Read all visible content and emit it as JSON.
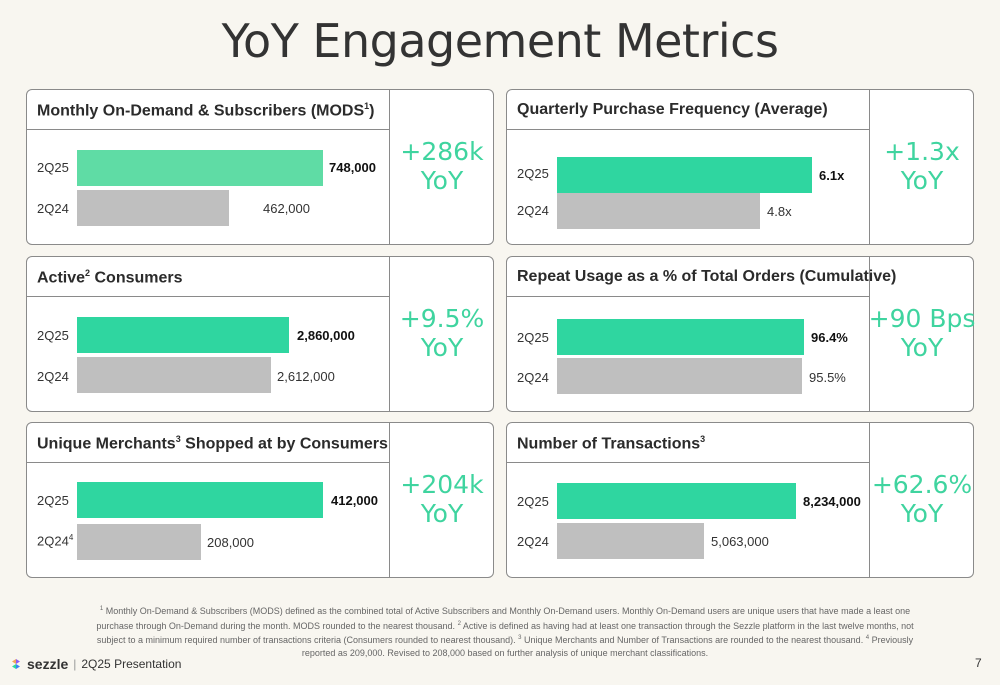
{
  "title": "YoY Engagement Metrics",
  "colors": {
    "current_bar": "#2fd6a0",
    "prior_bar": "#bfbfbf",
    "yoy_text": "#3fd49f"
  },
  "cards": {
    "mods": {
      "title": "Monthly On-Demand & Subscribers (MODS",
      "title_sup": "1",
      "title_tail": ")",
      "cur_label": "2Q25",
      "cur_value": "748,000",
      "cur_num": 748000,
      "prev_label": "2Q24",
      "prev_value": "462,000",
      "prev_num": 462000,
      "yoy_line1": "+286k",
      "yoy_line2": "YoY"
    },
    "freq": {
      "title": "Quarterly Purchase Frequency (Average)",
      "cur_label": "2Q25",
      "cur_value": "6.1x",
      "cur_num": 6.1,
      "prev_label": "2Q24",
      "prev_value": "4.8x",
      "prev_num": 4.8,
      "yoy_line1": "+1.3x",
      "yoy_line2": "YoY"
    },
    "active": {
      "title_pre": "Active",
      "title_sup": "2",
      "title_post": " Consumers",
      "cur_label": "2Q25",
      "cur_value": "2,860,000",
      "cur_num": 2860000,
      "prev_label": "2Q24",
      "prev_value": "2,612,000",
      "prev_num": 2612000,
      "yoy_line1": "+9.5%",
      "yoy_line2": "YoY"
    },
    "repeat": {
      "title": "Repeat Usage as a % of Total Orders (Cumulative)",
      "cur_label": "2Q25",
      "cur_value": "96.4%",
      "cur_num": 96.4,
      "prev_label": "2Q24",
      "prev_value": "95.5%",
      "prev_num": 95.5,
      "yoy_line1": "+90 Bps",
      "yoy_line2": "YoY"
    },
    "merchants": {
      "title_pre": "Unique Merchants",
      "title_sup": "3",
      "title_post": " Shopped at by Consumers",
      "cur_label": "2Q25",
      "cur_value": "412,000",
      "cur_num": 412000,
      "prev_label": "2Q24",
      "prev_label_sup": "4",
      "prev_value": "208,000",
      "prev_num": 208000,
      "yoy_line1": "+204k",
      "yoy_line2": "YoY"
    },
    "transactions": {
      "title_pre": "Number of Transactions",
      "title_sup": "3",
      "cur_label": "2Q25",
      "cur_value": "8,234,000",
      "cur_num": 8234000,
      "prev_label": "2Q24",
      "prev_value": "5,063,000",
      "prev_num": 5063000,
      "yoy_line1": "+62.6%",
      "yoy_line2": "YoY"
    }
  },
  "footnote": {
    "s1": "1",
    "t1": " Monthly On-Demand & Subscribers (MODS) defined as the combined total of Active Subscribers and Monthly On-Demand users. Monthly On-Demand users are unique users that have made a least one purchase through On-Demand during the month. MODS rounded to the nearest thousand.",
    "s2": "2",
    "t2": " Active is defined as having had at least one transaction through the Sezzle platform in the last twelve months, not subject to a minimum required number of transactions criteria (Consumers rounded to nearest thousand).",
    "s3": "3",
    "t3": " Unique Merchants and Number of Transactions are rounded to the nearest thousand.",
    "s4": "4",
    "t4": " Previously reported as 209,000. Revised to 208,000 based on further analysis of unique merchant classifications."
  },
  "footer": {
    "brand": "sezzle",
    "separator": "|",
    "presentation": "2Q25 Presentation",
    "logo_icon": "sezzle-logo-icon",
    "page_number": "7"
  }
}
